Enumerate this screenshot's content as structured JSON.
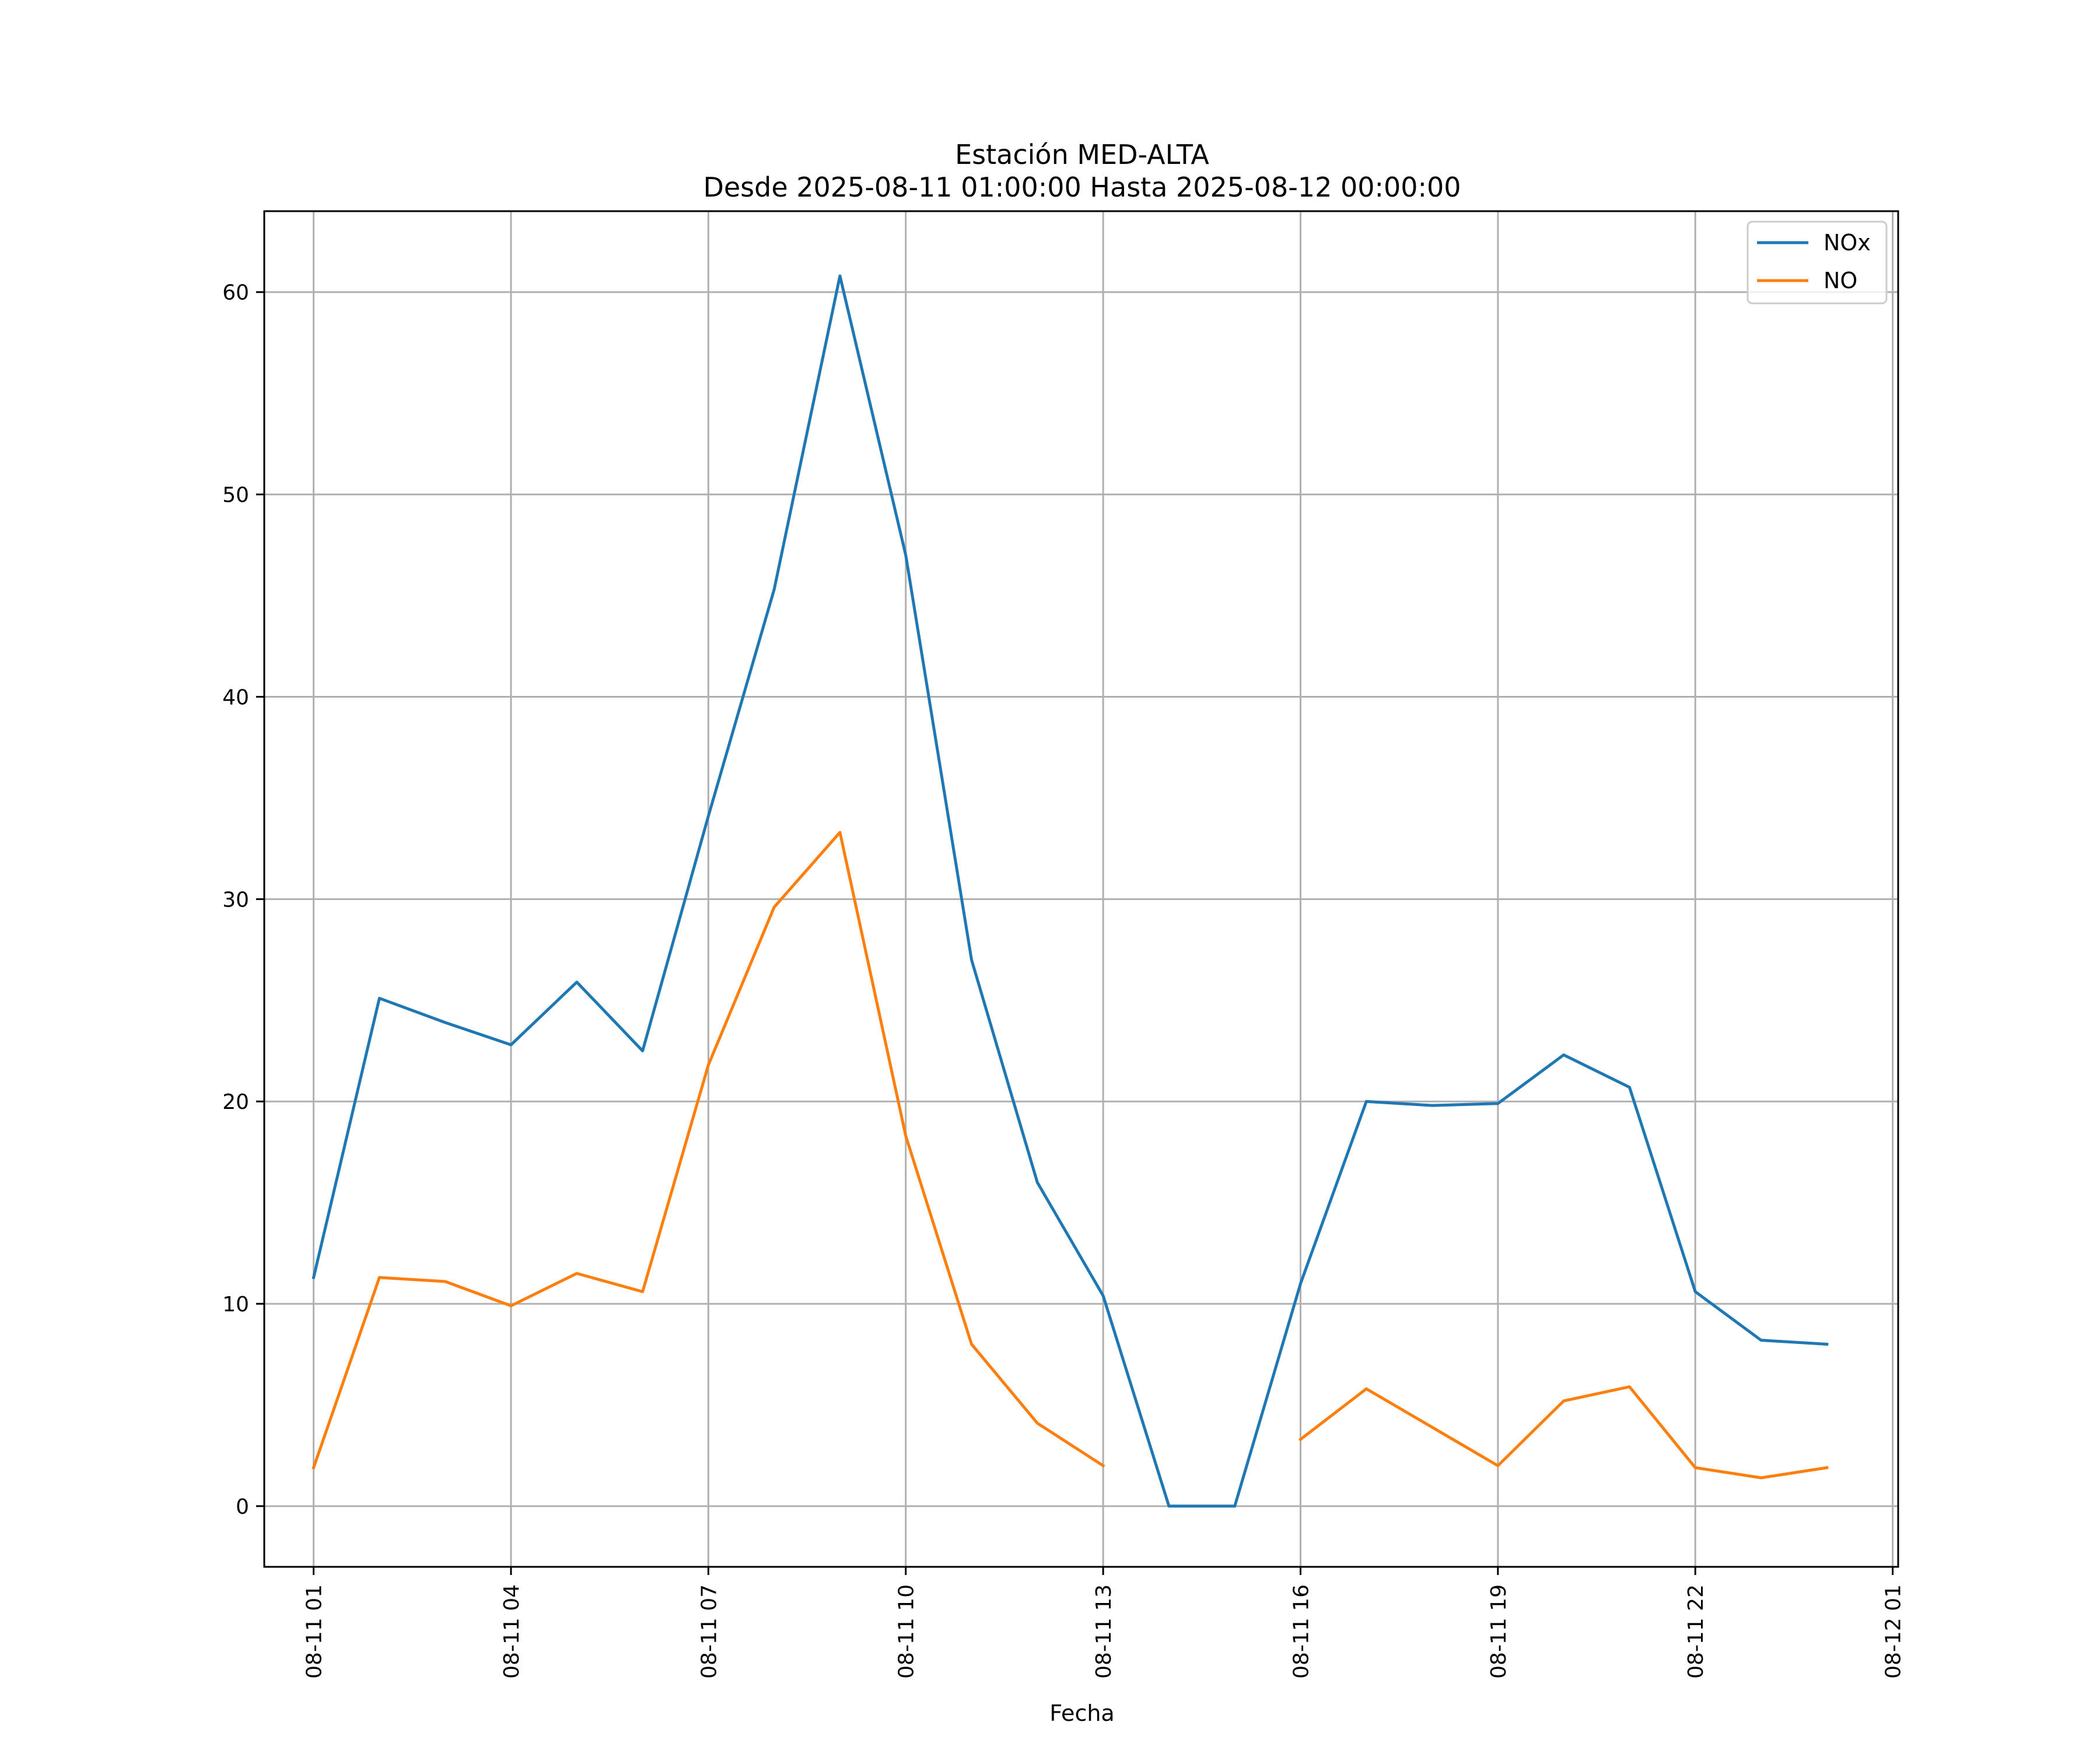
{
  "chart_data": {
    "type": "line",
    "title": "Estación MED-ALTA",
    "subtitle": "Desde 2025-08-11 01:00:00 Hasta 2025-08-12 00:00:00",
    "xlabel": "Fecha",
    "ylabel": "",
    "x": [
      "08-11 01",
      "08-11 02",
      "08-11 03",
      "08-11 04",
      "08-11 05",
      "08-11 06",
      "08-11 07",
      "08-11 08",
      "08-11 09",
      "08-11 10",
      "08-11 11",
      "08-11 12",
      "08-11 13",
      "08-11 14",
      "08-11 15",
      "08-11 16",
      "08-11 17",
      "08-11 18",
      "08-11 19",
      "08-11 20",
      "08-11 21",
      "08-11 22",
      "08-11 23",
      "08-12 00"
    ],
    "xlim": [
      "08-11 00:15",
      "08-12 01:05"
    ],
    "x_ticks": [
      "08-11 01",
      "08-11 04",
      "08-11 07",
      "08-11 10",
      "08-11 13",
      "08-11 16",
      "08-11 19",
      "08-11 22",
      "08-12 01"
    ],
    "ylim": [
      -3,
      64
    ],
    "y_ticks": [
      0,
      10,
      20,
      30,
      40,
      50,
      60
    ],
    "grid": true,
    "legend_position": "top-right",
    "series": [
      {
        "name": "NOx",
        "color": "#1f77b4",
        "values": [
          11.3,
          25.1,
          23.9,
          22.8,
          25.9,
          22.5,
          34.1,
          45.3,
          60.8,
          47.0,
          27.0,
          16.0,
          10.4,
          0.0,
          0.0,
          11.0,
          20.0,
          19.8,
          19.9,
          22.3,
          20.7,
          10.6,
          8.2,
          8.0
        ]
      },
      {
        "name": "NO",
        "color": "#ff7f0e",
        "values": [
          1.9,
          11.3,
          11.1,
          9.9,
          11.5,
          10.6,
          21.8,
          29.6,
          33.3,
          18.3,
          8.0,
          4.1,
          2.0,
          null,
          null,
          3.3,
          5.8,
          3.9,
          2.0,
          5.2,
          5.9,
          1.9,
          1.4,
          1.9
        ]
      }
    ]
  }
}
